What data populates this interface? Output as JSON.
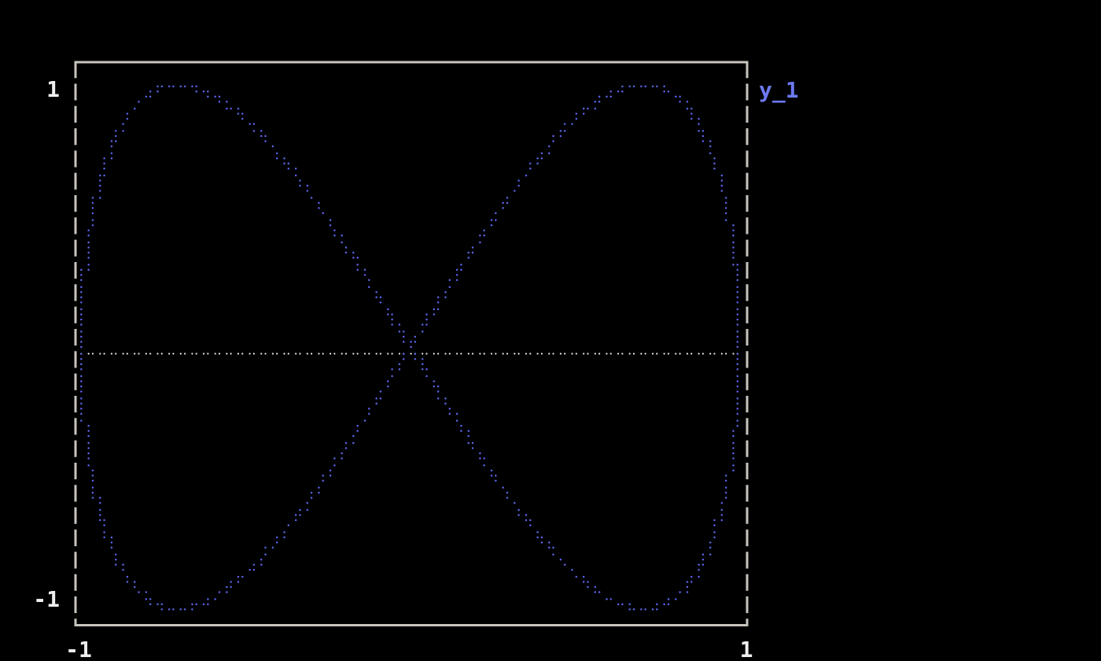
{
  "background": "#000000",
  "colors": {
    "series": "#5a64e6",
    "axis_dots": "#ececec",
    "border": "#c8c5be",
    "tick_text": "#efefef",
    "legend_text": "#6d79f2"
  },
  "labels": {
    "y_max": "1",
    "y_min": "-1",
    "x_min": "-1",
    "x_max": "1",
    "legend": "y_1"
  },
  "chart_data": {
    "type": "scatter",
    "title": "",
    "xlabel": "",
    "ylabel": "",
    "xlim": [
      -1,
      1
    ],
    "ylim": [
      -1,
      1
    ],
    "x_tick_labels": [
      "-1",
      "1"
    ],
    "y_tick_labels": [
      "1",
      "-1"
    ],
    "grid": false,
    "legend_position": "right-top",
    "border_style": "solid top/bottom, dashed left/right",
    "marker": "terminal-braille-dot",
    "series": [
      {
        "name": "y_1",
        "color": "#5a64e6",
        "description": "Lissajous figure-eight curve (bowtie) of dotted samples",
        "parametric": {
          "x": "sin(t)",
          "y": "sin(2t)",
          "x_freq": 1,
          "y_freq": 2,
          "t_min": 0,
          "t_max": 6.28319,
          "n_points": 1200
        }
      }
    ],
    "axis_line": {
      "y": 0,
      "style": "dotted",
      "color": "#ececec",
      "x_from": -1,
      "x_to": 1
    }
  }
}
